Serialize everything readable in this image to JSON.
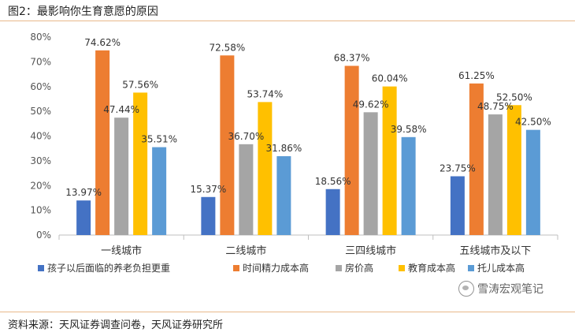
{
  "figure": {
    "title": "图2：最影响你生育意愿的原因",
    "source": "资料来源：天风证券调查问卷，天风证券研究所",
    "watermark": "雪涛宏观笔记",
    "watermark_icon": "wechat-icon"
  },
  "chart_data": {
    "type": "bar",
    "title": "",
    "xlabel": "",
    "ylabel": "",
    "ylim": [
      0,
      80
    ],
    "yticks": [
      "0%",
      "10%",
      "20%",
      "30%",
      "40%",
      "50%",
      "60%",
      "70%",
      "80%"
    ],
    "grid": false,
    "legend_position": "bottom",
    "categories": [
      "一线城市",
      "二线城市",
      "三四线城市",
      "五线城市及以下"
    ],
    "series": [
      {
        "name": "孩子以后面临的养老负担更重",
        "color": "#4472c4",
        "values": [
          13.97,
          15.37,
          18.56,
          23.75
        ],
        "labels": [
          "13.97%",
          "15.37%",
          "18.56%",
          "23.75%"
        ]
      },
      {
        "name": "时间精力成本高",
        "color": "#ed7d31",
        "values": [
          74.62,
          72.58,
          68.37,
          61.25
        ],
        "labels": [
          "74.62%",
          "72.58%",
          "68.37%",
          "61.25%"
        ]
      },
      {
        "name": "房价高",
        "color": "#a5a5a5",
        "values": [
          47.44,
          36.7,
          49.62,
          48.75
        ],
        "labels": [
          "47.44%",
          "36.70%",
          "49.62%",
          "48.75%"
        ]
      },
      {
        "name": "教育成本高",
        "color": "#ffc000",
        "values": [
          57.56,
          53.74,
          60.04,
          52.5
        ],
        "labels": [
          "57.56%",
          "53.74%",
          "60.04%",
          "52.50%"
        ]
      },
      {
        "name": "托儿成本高",
        "color": "#5b9bd5",
        "values": [
          35.51,
          31.86,
          39.58,
          42.5
        ],
        "labels": [
          "35.51%",
          "31.86%",
          "39.58%",
          "42.50%"
        ]
      }
    ]
  }
}
